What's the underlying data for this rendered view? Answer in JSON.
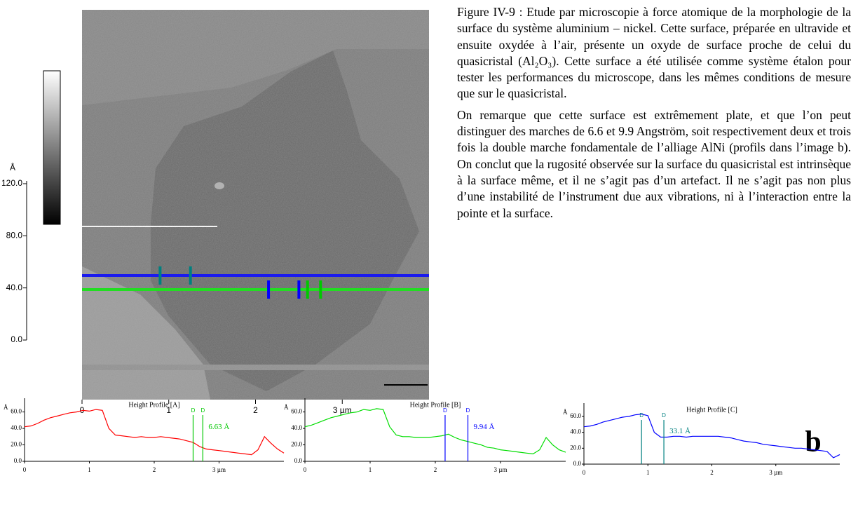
{
  "caption": {
    "paragraphs": [
      "Figure IV-9 : Etude par microscopie à force atomique de la morphologie de la surface du système aluminium – nickel. Cette surface, préparée en ultravide et ensuite oxydée à l’air, présente un oxyde de surface proche de celui du quasicristal (Al₂O₃). Cette surface a été utilisée comme système étalon pour tester les performances du microscope, dans les mêmes conditions de mesure que sur le quasicristal.",
      "On remarque que cette surface est extrêmement plate, et que l’on peut distinguer des marches de 6.6 et 9.9 Angström, soit respectivement deux et trois fois la double marche fondamentale de l’alliage AlNi (profils dans l’image b). On conclut que la rugosité observée sur la surface du quasicristal est intrinsèque à la surface même, et il ne s’agit pas d’un artefact. Il ne s’agit pas non plus d’une instabilité de l’instrument due aux vibrations, ni à l’interaction entre la pointe et la surface."
    ]
  },
  "image": {
    "xlim": [
      0,
      4
    ],
    "xticks": [
      0,
      1,
      2,
      {
        "value": 3,
        "label": "3 µm"
      }
    ],
    "colorbar": {
      "unit": "Å",
      "ylim": [
        0,
        120
      ],
      "yticks": [
        {
          "value": 0,
          "label": "0.0"
        },
        {
          "value": 40,
          "label": "40.0"
        },
        {
          "value": 80,
          "label": "80.0"
        },
        {
          "value": 120,
          "label": "120.0"
        }
      ]
    }
  },
  "panel_label": "b",
  "chart_data": [
    {
      "type": "line",
      "title": "Height Profile [A]",
      "y_unit": "Å",
      "xlim": [
        0,
        4
      ],
      "xticks": [
        0,
        1,
        2,
        {
          "value": 3,
          "label": "3 µm"
        }
      ],
      "ylim": [
        0,
        75
      ],
      "yticks": [
        {
          "value": 0,
          "label": "0.0"
        },
        {
          "value": 20,
          "label": "20.0"
        },
        {
          "value": 40,
          "label": "40.0"
        },
        {
          "value": 60,
          "label": "60.0"
        }
      ],
      "x": [
        0,
        0.1,
        0.2,
        0.3,
        0.4,
        0.5,
        0.6,
        0.7,
        0.8,
        0.9,
        1,
        1.1,
        1.2,
        1.3,
        1.4,
        1.5,
        1.6,
        1.7,
        1.8,
        1.9,
        2,
        2.1,
        2.2,
        2.3,
        2.4,
        2.5,
        2.6,
        2.7,
        2.8,
        2.9,
        3,
        3.1,
        3.2,
        3.3,
        3.4,
        3.5,
        3.6,
        3.7,
        3.8,
        3.9,
        4
      ],
      "series": [
        {
          "color": "#ff0000",
          "values": [
            42,
            43,
            46,
            50,
            53,
            55,
            57,
            59,
            60,
            62,
            61,
            63,
            62,
            40,
            32,
            31,
            30,
            29,
            30,
            29,
            29,
            30,
            29,
            28,
            27,
            25,
            23,
            18,
            15,
            14,
            13,
            12,
            11,
            10,
            9,
            8,
            14,
            30,
            22,
            15,
            10
          ]
        }
      ],
      "cursors": {
        "color": "#00c800",
        "x": [
          2.6,
          2.75
        ],
        "labels": [
          "D",
          "D"
        ],
        "annotation": "6.63 Å"
      }
    },
    {
      "type": "line",
      "title": "Height Profile [B]",
      "y_unit": "Å",
      "xlim": [
        0,
        4
      ],
      "xticks": [
        0,
        1,
        2,
        {
          "value": 3,
          "label": "3 µm"
        }
      ],
      "ylim": [
        0,
        75
      ],
      "yticks": [
        {
          "value": 0,
          "label": "0.0"
        },
        {
          "value": 20,
          "label": "20.0"
        },
        {
          "value": 40,
          "label": "40.0"
        },
        {
          "value": 60,
          "label": "60.0"
        }
      ],
      "x": [
        0,
        0.1,
        0.2,
        0.3,
        0.4,
        0.5,
        0.6,
        0.7,
        0.8,
        0.9,
        1,
        1.1,
        1.2,
        1.3,
        1.4,
        1.5,
        1.6,
        1.7,
        1.8,
        1.9,
        2,
        2.1,
        2.2,
        2.3,
        2.4,
        2.5,
        2.6,
        2.7,
        2.8,
        2.9,
        3,
        3.1,
        3.2,
        3.3,
        3.4,
        3.5,
        3.6,
        3.7,
        3.8,
        3.9,
        4
      ],
      "series": [
        {
          "color": "#00dd00",
          "values": [
            42,
            44,
            47,
            50,
            53,
            55,
            57,
            59,
            60,
            63,
            62,
            64,
            63,
            42,
            32,
            30,
            30,
            29,
            29,
            29,
            30,
            31,
            33,
            29,
            26,
            24,
            22,
            20,
            17,
            16,
            14,
            13,
            12,
            11,
            10,
            9,
            14,
            29,
            20,
            14,
            11
          ]
        }
      ],
      "cursors": {
        "color": "#0000ff",
        "x": [
          2.15,
          2.5
        ],
        "labels": [
          "D",
          "D"
        ],
        "annotation": "9.94 Å"
      }
    },
    {
      "type": "line",
      "title": "Height Profile [C]",
      "y_unit": "Å",
      "xlim": [
        0,
        4
      ],
      "xticks": [
        0,
        1,
        2,
        {
          "value": 3,
          "label": "3 µm"
        }
      ],
      "ylim": [
        0,
        75
      ],
      "yticks": [
        {
          "value": 0,
          "label": "0.0"
        },
        {
          "value": 20,
          "label": "20.0"
        },
        {
          "value": 40,
          "label": "40.0"
        },
        {
          "value": 60,
          "label": "60.0"
        }
      ],
      "x": [
        0,
        0.1,
        0.2,
        0.3,
        0.4,
        0.5,
        0.6,
        0.7,
        0.8,
        0.9,
        1,
        1.1,
        1.2,
        1.3,
        1.4,
        1.5,
        1.6,
        1.7,
        1.8,
        1.9,
        2,
        2.1,
        2.2,
        2.3,
        2.4,
        2.5,
        2.6,
        2.7,
        2.8,
        2.9,
        3,
        3.1,
        3.2,
        3.3,
        3.4,
        3.5,
        3.6,
        3.7,
        3.8,
        3.9,
        4
      ],
      "series": [
        {
          "color": "#0000ff",
          "values": [
            47,
            48,
            50,
            53,
            55,
            57,
            59,
            60,
            62,
            63,
            61,
            40,
            34,
            34,
            35,
            35,
            34,
            35,
            35,
            35,
            35,
            35,
            34,
            33,
            31,
            29,
            28,
            27,
            25,
            24,
            23,
            22,
            21,
            20,
            20,
            19,
            18,
            17,
            16,
            8,
            12
          ]
        }
      ],
      "cursors": {
        "color": "#008080",
        "x": [
          0.9,
          1.25
        ],
        "labels": [
          "D",
          "D"
        ],
        "annotation": "33.1 Å"
      }
    }
  ]
}
